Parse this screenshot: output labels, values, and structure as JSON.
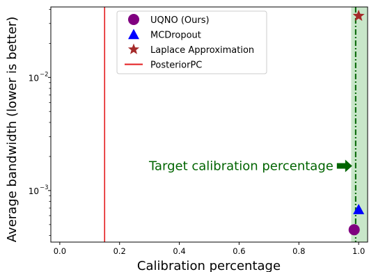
{
  "chart_data": {
    "type": "scatter",
    "xlabel": "Calibration percentage",
    "ylabel": "Average bandwidth (lower is better)",
    "xlim": [
      -0.03,
      1.03
    ],
    "ylim": [
      0.00035,
      0.042
    ],
    "yscale": "log",
    "x_ticks": [
      {
        "value": 0.0,
        "label": "0.0"
      },
      {
        "value": 0.2,
        "label": "0.2"
      },
      {
        "value": 0.4,
        "label": "0.4"
      },
      {
        "value": 0.6,
        "label": "0.6"
      },
      {
        "value": 0.8,
        "label": "0.8"
      },
      {
        "value": 1.0,
        "label": "1.0"
      }
    ],
    "y_ticks": [
      {
        "value": 0.001,
        "base": "10",
        "exp": "−3"
      },
      {
        "value": 0.01,
        "base": "10",
        "exp": "−2"
      }
    ],
    "legend_position": "top-center",
    "series": [
      {
        "name": "UQNO (Ours)",
        "marker": "circle",
        "color": "#800080",
        "points": [
          {
            "x": 0.985,
            "y": 0.00045
          }
        ]
      },
      {
        "name": "MCDropout",
        "marker": "triangle",
        "color": "#0000ff",
        "points": [
          {
            "x": 1.0,
            "y": 0.00068
          }
        ]
      },
      {
        "name": "Laplace Approximation",
        "marker": "star",
        "color": "#a52a2a",
        "points": [
          {
            "x": 1.0,
            "y": 0.035
          }
        ]
      },
      {
        "name": "PosteriorPC",
        "marker": "vline",
        "color": "#e31a1c",
        "x": 0.15
      }
    ],
    "target_band": {
      "x_start": 0.975,
      "x_end": 1.03,
      "line_x": 0.99,
      "fill": "#c8e6c9",
      "line_color": "#006400"
    },
    "annotation": {
      "text": "Target calibration percentage",
      "color": "#006400",
      "y": 0.00165
    }
  }
}
